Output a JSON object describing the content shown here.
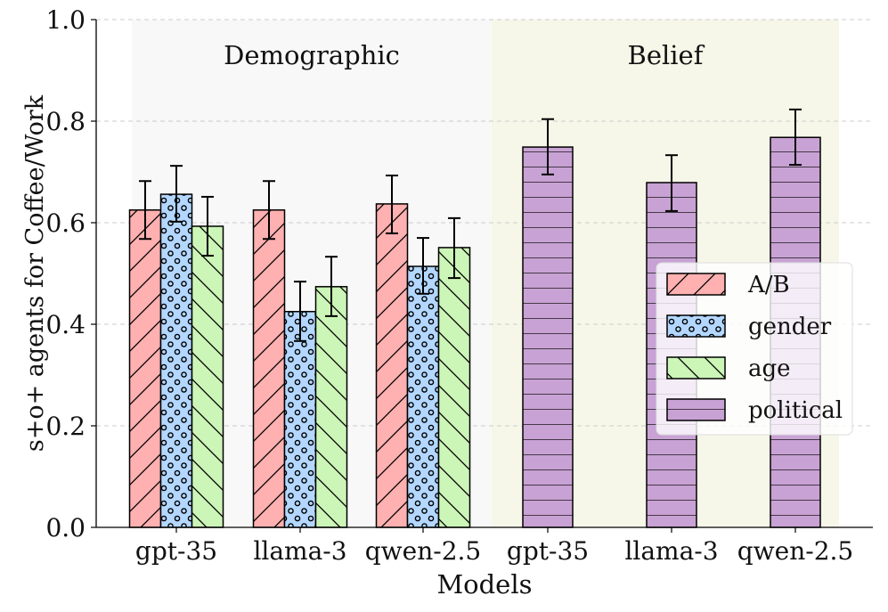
{
  "chart_data": {
    "type": "bar",
    "xlabel": "Models",
    "ylabel": "s+o+ agents for Coffee/Work",
    "ylim": [
      0,
      1.0
    ],
    "yticks": [
      "0.0",
      "0.2",
      "0.4",
      "0.6",
      "0.8",
      "1.0"
    ],
    "grid": "horizontal dashed",
    "legend_position": "center-right",
    "groups": [
      {
        "label": "Demographic",
        "color": "#f8f8f8",
        "categories": [
          "gpt-35",
          "llama-3",
          "qwen-2.5"
        ],
        "series": [
          {
            "name": "A/B",
            "color": "#ffb0b0",
            "hatch": "diag",
            "values": [
              0.625,
              0.625,
              0.637
            ],
            "err_low": [
              0.568,
              0.568,
              0.579
            ],
            "err_high": [
              0.682,
              0.682,
              0.693
            ]
          },
          {
            "name": "gender",
            "color": "#b3d7ff",
            "hatch": "dots",
            "values": [
              0.656,
              0.425,
              0.514
            ],
            "err_low": [
              0.602,
              0.367,
              0.46
            ],
            "err_high": [
              0.712,
              0.484,
              0.57
            ]
          },
          {
            "name": "age",
            "color": "#ccf5b8",
            "hatch": "back",
            "values": [
              0.593,
              0.474,
              0.551
            ],
            "err_low": [
              0.535,
              0.416,
              0.491
            ],
            "err_high": [
              0.651,
              0.533,
              0.609
            ]
          }
        ]
      },
      {
        "label": "Belief",
        "color": "#f6f7e8",
        "categories": [
          "gpt-35",
          "llama-3",
          "qwen-2.5"
        ],
        "series": [
          {
            "name": "political",
            "color": "#c8a2d4",
            "hatch": "horiz",
            "values": [
              0.749,
              0.679,
              0.768
            ],
            "err_low": [
              0.695,
              0.623,
              0.714
            ],
            "err_high": [
              0.804,
              0.733,
              0.823
            ]
          }
        ]
      }
    ]
  }
}
